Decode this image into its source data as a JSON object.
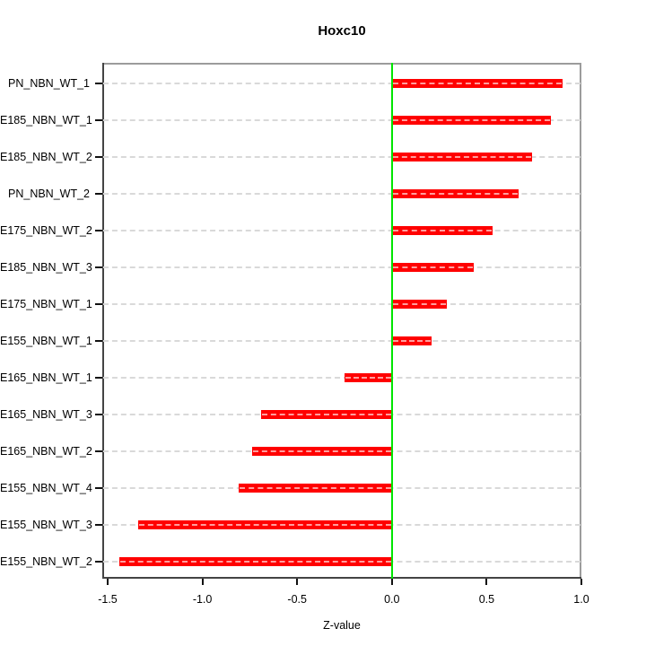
{
  "chart_data": {
    "type": "bar",
    "orientation": "horizontal",
    "title": "Hoxc10",
    "xlabel": "Z-value",
    "ylabel": "",
    "categories": [
      "PN_NBN_WT_1",
      "E185_NBN_WT_1",
      "E185_NBN_WT_2",
      "PN_NBN_WT_2",
      "E175_NBN_WT_2",
      "E185_NBN_WT_3",
      "E175_NBN_WT_1",
      "E155_NBN_WT_1",
      "E165_NBN_WT_1",
      "E165_NBN_WT_3",
      "E165_NBN_WT_2",
      "E155_NBN_WT_4",
      "E155_NBN_WT_3",
      "E155_NBN_WT_2"
    ],
    "values": [
      0.9,
      0.84,
      0.74,
      0.67,
      0.53,
      0.43,
      0.29,
      0.21,
      -0.25,
      -0.69,
      -0.74,
      -0.81,
      -1.34,
      -1.44
    ],
    "xlim": [
      -1.53,
      1.0
    ],
    "xticks": [
      -1.5,
      -1.0,
      -0.5,
      0.0,
      0.5,
      1.0
    ],
    "xtick_labels": [
      "-1.5",
      "-1.0",
      "-0.5",
      "0.0",
      "0.5",
      "1.0"
    ],
    "grid": "horizontal-dashed",
    "legend": "none",
    "zero_reference_line": 0.0,
    "colors": {
      "bar": "#ff0000",
      "zero_line": "#00e600",
      "grid_line": "#d9d9d9",
      "box_top_right": "#9c9c9c",
      "box_left_bottom": "#444444",
      "tick": "#111111",
      "background": "#ffffff"
    }
  }
}
